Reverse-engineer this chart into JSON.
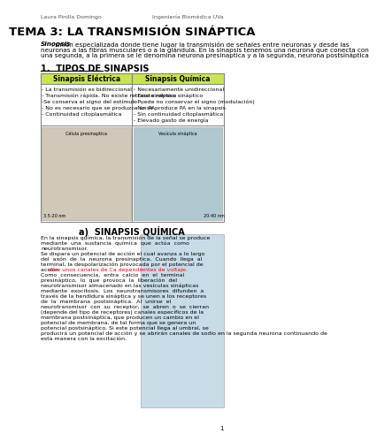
{
  "header_left": "Laura Pinilla Domingo",
  "header_right": "Ingeniería Biomédica UVa",
  "title": "TEMA 3: LA TRANSMISIÓN SINÁPTICA",
  "synopsis_label": "Sinopsis",
  "synopsis_line1": ": unión especializada donde tiene lugar la transmisión de señales entre neuronas y desde las",
  "synopsis_line2": "neuronas a las fibras musculares o a la glándula. En la sinapsis tenemos una neurona que conecta con",
  "synopsis_line3": "una segunda, a la primera se le denomina neurona presinaptica y a la segunda, neurona postsináptica",
  "section1_title": "1.  TIPOS DE SINAPSIS",
  "col1_header": "Sinapsis Eléctrica",
  "col2_header": "Sinapsis Química",
  "col1_items": [
    "- La transmisión es bidireccional",
    "- Transmisión rápida. No existe retraso sináptico",
    "-Se conserva el signo del estímulo",
    "- No es necesario que se produzca un PA",
    "- Continuidad citoplasmática"
  ],
  "col2_items": [
    "- Necesariamente unidireccional",
    "- Existe retraso sináptico",
    "- Puede no conservar el signo (modulación)",
    "- No se produce PA en la sinapsis",
    "- Sin continuidad citoplasmática",
    "- Elevado gasto de energía"
  ],
  "img_left_label_top": "Célula presinaptica",
  "img_left_label_bot": "3.5-20 nm",
  "img_right_label_top": "Vesícula sináptica",
  "img_right_label_bot": "20-40 nm",
  "section2_title": "a)  SINAPSIS QUÍMICA",
  "body_lines_before_red": [
    "En la sinapsis química, la transmisión de la señal se produce",
    "mediante  una  sustancia  química  que  actúa  como",
    "neurotransmisor.",
    "Se dispara un potencial de acción el cual avanza a lo largo",
    "del  axón  de  la  neurona  presinaptica.  Cuando  llega  al",
    "terminal, la despolarización provocada por el potencial de"
  ],
  "red_line_prefix": "acción ",
  "red_line_red": "abre unos canales de Ca dependientes de voltaje.",
  "body_lines_after_red": [
    "Como  consecuencia,  entra  calcio  en  el  terminal",
    "presináptico,  lo  que  provoca  la  liberación  del",
    "neurotransmisor almacenado en las vesículas sinápticas",
    "mediante  exocitosis.  Los  neurotransmisores  difunden  a",
    "través de la hendidura sináptica y se unen a los receptores",
    "de  la  membrana  postsináptica.  Al  unirse  el",
    "neurotransmisor  con  su  receptor,  se  abren  o  se  cierran",
    "(depende del tipo de receptores) canales específicos de la",
    "membrana postsináptica, que producen un cambio en el",
    "potencial de membrana, de tal forma que se genera un",
    "potencial postsináptico. Si este potencial llega al umbral, se"
  ],
  "body_lines_full_width": [
    "producirá un potencial de acción y se abrirán canales de sodio en la segunda neurona continuando de",
    "esta manera con la excitación."
  ],
  "page_number": "1",
  "table_header_color": "#c8e64c",
  "table_border_color": "#888888",
  "background_color": "#ffffff",
  "text_color": "#000000",
  "title_color": "#000000",
  "image_placeholder_color": "#d0c8b8",
  "image_placeholder_color2": "#b0c8d0",
  "body_image_color": "#c8dce8"
}
